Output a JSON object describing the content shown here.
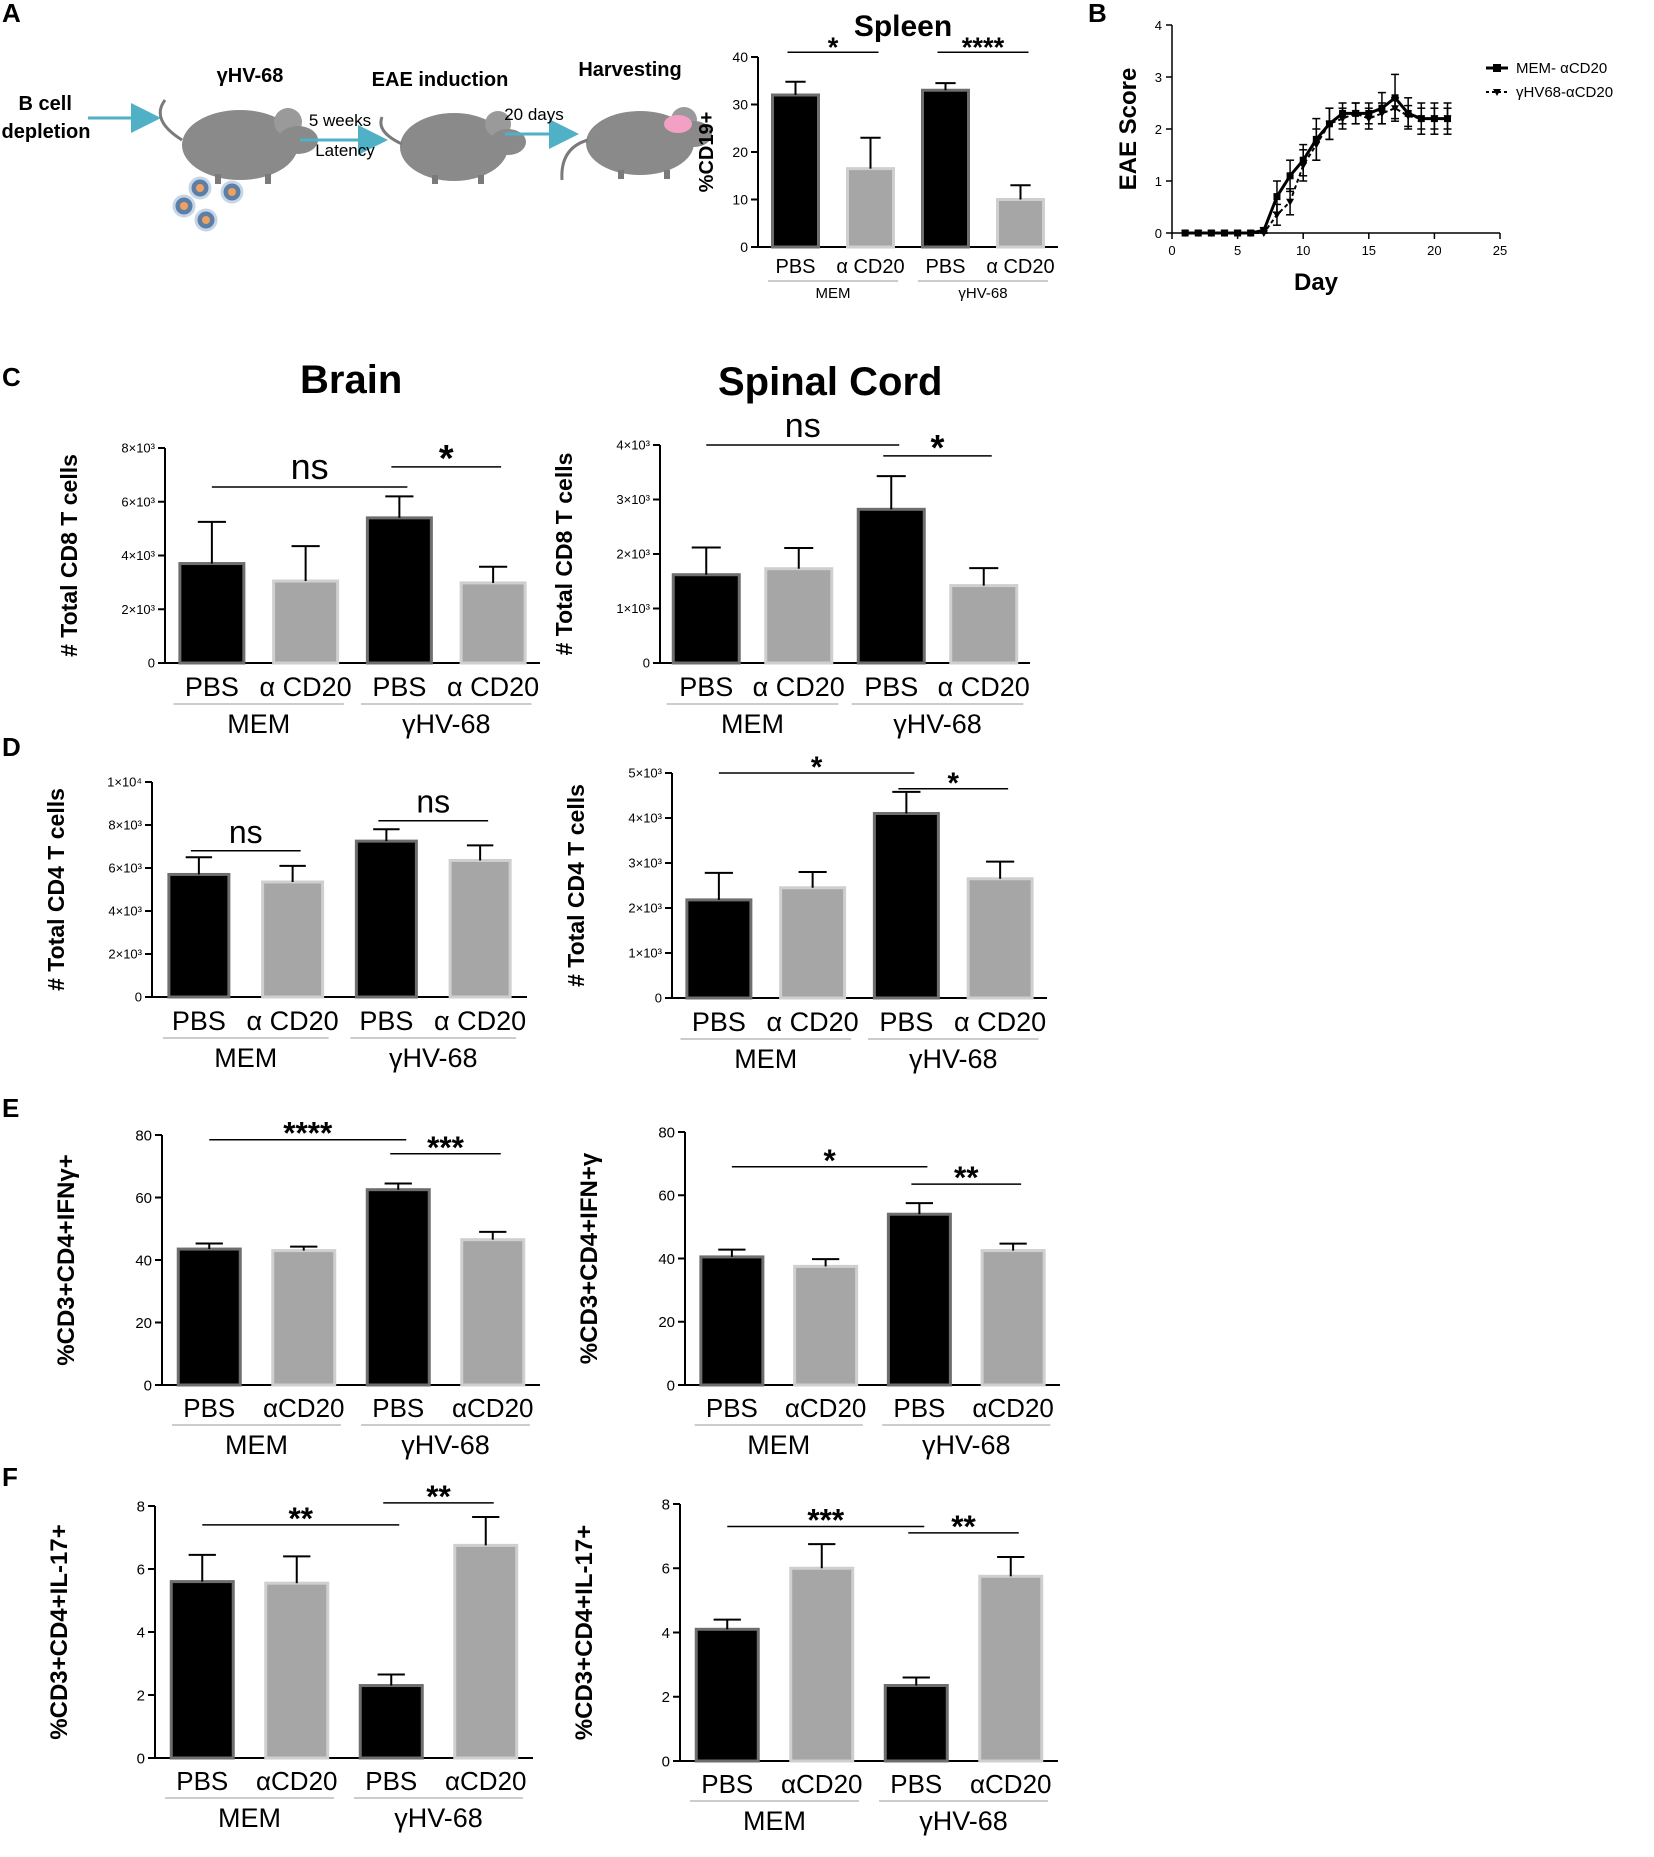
{
  "panel_letters": [
    "A",
    "B",
    "C",
    "D",
    "E",
    "F"
  ],
  "schematic": {
    "steps": [
      "B cell\ndepletion",
      "γHV-68",
      "EAE induction",
      "Harvesting"
    ],
    "arrow_labels": [
      [
        "5 weeks",
        "Latency"
      ],
      [
        "20 days"
      ]
    ]
  },
  "section_titles": {
    "brain": "Brain",
    "spinal_cord": "Spinal Cord"
  },
  "colors": {
    "pbs": "#000000",
    "acd20": "#a6a6a6",
    "acd20_edge": "#cfcfcf",
    "pbs_edge": "#6e6e6e",
    "axis": "#000000"
  },
  "chart_data": [
    {
      "id": "spleen",
      "type": "bar",
      "title": "Spleen",
      "ylabel": "%CD19+",
      "ylim": [
        0,
        40
      ],
      "yticks": [
        "0",
        "10",
        "20",
        "30",
        "40"
      ],
      "ytick_values": [
        0,
        10,
        20,
        30,
        40
      ],
      "categories": [
        "PBS",
        "α CD20",
        "PBS",
        "α CD20"
      ],
      "groups": [
        "MEM",
        "γHV-68"
      ],
      "values": [
        32,
        16.5,
        33,
        10
      ],
      "errors": [
        2.8,
        6.5,
        1.5,
        3
      ],
      "significance": [
        {
          "from": 0,
          "to": 1,
          "label": "*",
          "y": 41
        },
        {
          "from": 2,
          "to": 3,
          "label": "****",
          "y": 41
        }
      ]
    },
    {
      "id": "eae",
      "type": "line",
      "xlabel": "Day",
      "ylabel": "EAE Score",
      "xlim": [
        0,
        25
      ],
      "ylim": [
        0,
        4
      ],
      "xticks": [
        "0",
        "5",
        "10",
        "15",
        "20",
        "25"
      ],
      "xtick_values": [
        0,
        5,
        10,
        15,
        20,
        25
      ],
      "yticks": [
        "0",
        "1",
        "2",
        "3",
        "4"
      ],
      "ytick_values": [
        0,
        1,
        2,
        3,
        4
      ],
      "series": [
        {
          "name": "MEM- αCD20",
          "x": [
            1,
            2,
            3,
            4,
            5,
            6,
            7,
            8,
            9,
            10,
            11,
            12,
            13,
            14,
            15,
            16,
            17,
            18,
            19,
            20,
            21
          ],
          "y": [
            0,
            0,
            0,
            0,
            0,
            0,
            0.05,
            0.7,
            1.1,
            1.4,
            1.8,
            2.1,
            2.3,
            2.3,
            2.3,
            2.4,
            2.6,
            2.3,
            2.2,
            2.2,
            2.2
          ],
          "err": [
            0,
            0,
            0,
            0,
            0,
            0,
            0.05,
            0.3,
            0.3,
            0.3,
            0.4,
            0.3,
            0.2,
            0.2,
            0.2,
            0.3,
            0.45,
            0.3,
            0.3,
            0.3,
            0.3
          ]
        },
        {
          "name": "γHV68-αCD20",
          "x": [
            1,
            2,
            3,
            4,
            5,
            6,
            7,
            8,
            9,
            10,
            11,
            12,
            13,
            14,
            15,
            16,
            17,
            18,
            19,
            20,
            21
          ],
          "y": [
            0,
            0,
            0,
            0,
            0,
            0,
            0,
            0.35,
            0.6,
            1.3,
            1.7,
            2.1,
            2.2,
            2.3,
            2.2,
            2.3,
            2.4,
            2.25,
            2.2,
            2.2,
            2.2
          ],
          "err": [
            0,
            0,
            0,
            0,
            0,
            0,
            0,
            0.2,
            0.25,
            0.3,
            0.3,
            0.3,
            0.2,
            0.2,
            0.2,
            0.2,
            0.2,
            0.2,
            0.2,
            0.2,
            0.2
          ]
        }
      ]
    },
    {
      "id": "c-brain",
      "type": "bar",
      "ylabel": "# Total CD8 T cells",
      "ylim": [
        0,
        8000
      ],
      "yticks": [
        "0",
        "2×10³",
        "4×10³",
        "6×10³",
        "8×10³"
      ],
      "ytick_values": [
        0,
        2000,
        4000,
        6000,
        8000
      ],
      "categories": [
        "PBS",
        "α CD20",
        "PBS",
        "α CD20"
      ],
      "groups": [
        "MEM",
        "γHV-68"
      ],
      "values": [
        3700,
        3050,
        5400,
        2980
      ],
      "errors": [
        1550,
        1300,
        800,
        600
      ],
      "significance": [
        {
          "from": 0,
          "to": 2,
          "label": "ns",
          "y": 6550
        },
        {
          "from": 2,
          "to": 3,
          "label": "*",
          "y": 7300
        }
      ]
    },
    {
      "id": "c-spinal",
      "type": "bar",
      "ylabel": "# Total CD8 T cells",
      "ylim": [
        0,
        4000
      ],
      "yticks": [
        "0",
        "1×10³",
        "2×10³",
        "3×10³",
        "4×10³"
      ],
      "ytick_values": [
        0,
        1000,
        2000,
        3000,
        4000
      ],
      "categories": [
        "PBS",
        "α CD20",
        "PBS",
        "α CD20"
      ],
      "groups": [
        "MEM",
        "γHV-68"
      ],
      "values": [
        1620,
        1730,
        2820,
        1420
      ],
      "errors": [
        500,
        380,
        610,
        320
      ],
      "significance": [
        {
          "from": 0,
          "to": 2,
          "label": "ns",
          "y": 4000
        },
        {
          "from": 2,
          "to": 3,
          "label": "*",
          "y": 3800
        }
      ]
    },
    {
      "id": "d-brain",
      "type": "bar",
      "ylabel": "# Total CD4 T cells",
      "ylim": [
        0,
        10000
      ],
      "yticks": [
        "0",
        "2×10³",
        "4×10³",
        "6×10³",
        "8×10³",
        "1×10⁴"
      ],
      "ytick_values": [
        0,
        2000,
        4000,
        6000,
        8000,
        10000
      ],
      "categories": [
        "PBS",
        "α CD20",
        "PBS",
        "α CD20"
      ],
      "groups": [
        "MEM",
        "γHV-68"
      ],
      "values": [
        5700,
        5350,
        7250,
        6350
      ],
      "errors": [
        800,
        750,
        550,
        700
      ],
      "significance": [
        {
          "from": 0,
          "to": 1,
          "label": "ns",
          "y": 6800
        },
        {
          "from": 2,
          "to": 3,
          "label": "ns",
          "y": 8200
        }
      ]
    },
    {
      "id": "d-spinal",
      "type": "bar",
      "ylabel": "# Total CD4 T cells",
      "ylim": [
        0,
        5000
      ],
      "yticks": [
        "0",
        "1×10³",
        "2×10³",
        "3×10³",
        "4×10³",
        "5×10³"
      ],
      "ytick_values": [
        0,
        1000,
        2000,
        3000,
        4000,
        5000
      ],
      "categories": [
        "PBS",
        "α CD20",
        "PBS",
        "α CD20"
      ],
      "groups": [
        "MEM",
        "γHV-68"
      ],
      "values": [
        2180,
        2450,
        4100,
        2650
      ],
      "errors": [
        600,
        350,
        480,
        380
      ],
      "significance": [
        {
          "from": 0,
          "to": 2,
          "label": "*",
          "y": 5000
        },
        {
          "from": 2,
          "to": 3,
          "label": "*",
          "y": 4650
        }
      ]
    },
    {
      "id": "e-brain",
      "type": "bar",
      "ylabel": "%CD3+CD4+IFNγ+",
      "ylim": [
        0,
        80
      ],
      "yticks": [
        "0",
        "20",
        "40",
        "60",
        "80"
      ],
      "ytick_values": [
        0,
        20,
        40,
        60,
        80
      ],
      "categories": [
        "PBS",
        "αCD20",
        "PBS",
        "αCD20"
      ],
      "groups": [
        "MEM",
        "γHV-68"
      ],
      "values": [
        43.5,
        43,
        62.5,
        46.5
      ],
      "errors": [
        1.8,
        1.3,
        2,
        2.5
      ],
      "significance": [
        {
          "from": 0,
          "to": 2,
          "label": "****",
          "y": 78.5
        },
        {
          "from": 2,
          "to": 3,
          "label": "***",
          "y": 74
        }
      ]
    },
    {
      "id": "e-spinal",
      "type": "bar",
      "ylabel": "%CD3+CD4+IFN+γ",
      "ylim": [
        0,
        80
      ],
      "yticks": [
        "0",
        "20",
        "40",
        "60",
        "80"
      ],
      "ytick_values": [
        0,
        20,
        40,
        60,
        80
      ],
      "categories": [
        "PBS",
        "αCD20",
        "PBS",
        "αCD20"
      ],
      "groups": [
        "MEM",
        "γHV-68"
      ],
      "values": [
        40.5,
        37.5,
        54,
        42.5
      ],
      "errors": [
        2.3,
        2.3,
        3.5,
        2.2
      ],
      "significance": [
        {
          "from": 0,
          "to": 2,
          "label": "*",
          "y": 69
        },
        {
          "from": 2,
          "to": 3,
          "label": "**",
          "y": 63.5
        }
      ]
    },
    {
      "id": "f-brain",
      "type": "bar",
      "ylabel": "%CD3+CD4+IL-17+",
      "ylim": [
        0,
        8
      ],
      "yticks": [
        "0",
        "2",
        "4",
        "6",
        "8"
      ],
      "ytick_values": [
        0,
        2,
        4,
        6,
        8
      ],
      "categories": [
        "PBS",
        "αCD20",
        "PBS",
        "αCD20"
      ],
      "groups": [
        "MEM",
        "γHV-68"
      ],
      "values": [
        5.6,
        5.55,
        2.3,
        6.75
      ],
      "errors": [
        0.85,
        0.85,
        0.35,
        0.9
      ],
      "significance": [
        {
          "from": 0,
          "to": 2,
          "label": "**",
          "y": 7.4
        },
        {
          "from": 2,
          "to": 3,
          "label": "**",
          "y": 8.1
        }
      ]
    },
    {
      "id": "f-spinal",
      "type": "bar",
      "ylabel": "%CD3+CD4+IL-17+",
      "ylim": [
        0,
        8
      ],
      "yticks": [
        "0",
        "2",
        "4",
        "6",
        "8"
      ],
      "ytick_values": [
        0,
        2,
        4,
        6,
        8
      ],
      "categories": [
        "PBS",
        "αCD20",
        "PBS",
        "αCD20"
      ],
      "groups": [
        "MEM",
        "γHV-68"
      ],
      "values": [
        4.1,
        6.0,
        2.35,
        5.75
      ],
      "errors": [
        0.3,
        0.75,
        0.25,
        0.6
      ],
      "significance": [
        {
          "from": 0,
          "to": 2,
          "label": "***",
          "y": 7.3
        },
        {
          "from": 2,
          "to": 3,
          "label": "**",
          "y": 7.1
        }
      ]
    }
  ]
}
